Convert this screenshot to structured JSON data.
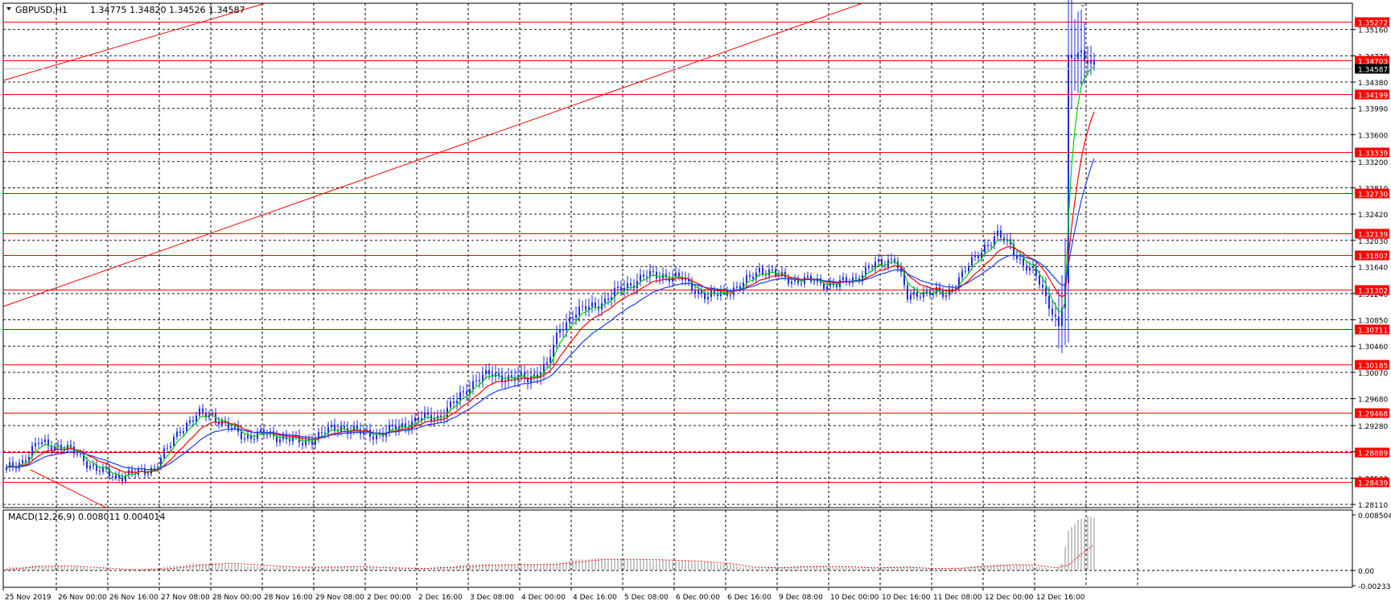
{
  "window": {
    "symbol": "GBPUSD,H1",
    "ohlc": "1.34775 1.34820 1.34526 1.34587"
  },
  "macd": {
    "label": "MACD(12,26,9) 0.008011 0.004014"
  },
  "colors": {
    "bull": "#1f2ee0",
    "level": "#ff0000",
    "ma_fast": "#00d000",
    "ma_mid": "#ff0000",
    "ma_slow": "#1a3cff",
    "grid": "#000000",
    "frame": "#000000",
    "tag_bg": "#ff0000",
    "tag_text": "#ffffff",
    "hist": "#b3b3b3",
    "signal": "#ff0000",
    "current_bg": "#000000"
  },
  "price_axis": {
    "ticks": [
      "1.35160",
      "1.34770",
      "1.34380",
      "1.33990",
      "1.33600",
      "1.33200",
      "1.32810",
      "1.32420",
      "1.32030",
      "1.31640",
      "1.31240",
      "1.30850",
      "1.30460",
      "1.30070",
      "1.29680",
      "1.29280",
      "1.28890",
      "1.28500",
      "1.28110"
    ],
    "ymin": 1.2811,
    "ymax": 1.3555
  },
  "levels": [
    {
      "label": "1.35272",
      "value": 1.35272
    },
    {
      "label": "1.34703",
      "value": 1.34703
    },
    {
      "label": "1.34199",
      "value": 1.34199
    },
    {
      "label": "1.33339",
      "value": 1.33339
    },
    {
      "label": "1.32730",
      "value": 1.3273
    },
    {
      "label": "1.32139",
      "value": 1.32139
    },
    {
      "label": "1.31807",
      "value": 1.31807
    },
    {
      "label": "1.31302",
      "value": 1.31302
    },
    {
      "label": "1.30711",
      "value": 1.30711
    },
    {
      "label": "1.30185",
      "value": 1.30185
    },
    {
      "label": "1.29468",
      "value": 1.29468
    },
    {
      "label": "1.28889",
      "value": 1.28889
    },
    {
      "label": "1.28439",
      "value": 1.28439
    }
  ],
  "current_price": {
    "label": "1.34587",
    "value": 1.34587
  },
  "macd_axis": {
    "ticks": [
      "0.008504",
      "0.00",
      "-0.00233"
    ],
    "ymax": 0.008504,
    "ymin": -0.00233
  },
  "time_axis": {
    "labels": [
      "25 Nov 2019",
      "26 Nov 00:00",
      "26 Nov 16:00",
      "27 Nov 08:00",
      "28 Nov 00:00",
      "28 Nov 16:00",
      "29 Nov 08:00",
      "2 Dec 00:00",
      "2 Dec 16:00",
      "3 Dec 08:00",
      "4 Dec 00:00",
      "4 Dec 16:00",
      "5 Dec 08:00",
      "6 Dec 00:00",
      "6 Dec 16:00",
      "9 Dec 08:00",
      "10 Dec 00:00",
      "10 Dec 16:00",
      "11 Dec 08:00",
      "12 Dec 00:00",
      "12 Dec 16:00"
    ]
  },
  "chart_data": {
    "type": "candlestick",
    "title": "GBPUSD,H1",
    "bars_per_label": 16,
    "price_anchors": [
      [
        0,
        1.2862
      ],
      [
        5,
        1.2876
      ],
      [
        10,
        1.2902
      ],
      [
        16,
        1.2898
      ],
      [
        22,
        1.2886
      ],
      [
        28,
        1.2862
      ],
      [
        34,
        1.2853
      ],
      [
        40,
        1.2856
      ],
      [
        46,
        1.2866
      ],
      [
        50,
        1.2892
      ],
      [
        54,
        1.2924
      ],
      [
        60,
        1.2944
      ],
      [
        64,
        1.2945
      ],
      [
        68,
        1.2928
      ],
      [
        74,
        1.2912
      ],
      [
        80,
        1.2915
      ],
      [
        86,
        1.2911
      ],
      [
        92,
        1.2902
      ],
      [
        98,
        1.2916
      ],
      [
        104,
        1.2927
      ],
      [
        110,
        1.2917
      ],
      [
        116,
        1.2915
      ],
      [
        122,
        1.2926
      ],
      [
        128,
        1.2938
      ],
      [
        134,
        1.2941
      ],
      [
        140,
        1.2965
      ],
      [
        146,
        1.2998
      ],
      [
        150,
        1.3003
      ],
      [
        156,
        1.3
      ],
      [
        162,
        1.2997
      ],
      [
        168,
        1.3018
      ],
      [
        172,
        1.3071
      ],
      [
        176,
        1.3094
      ],
      [
        180,
        1.3101
      ],
      [
        186,
        1.3114
      ],
      [
        192,
        1.3134
      ],
      [
        198,
        1.3149
      ],
      [
        204,
        1.3152
      ],
      [
        210,
        1.3145
      ],
      [
        214,
        1.3131
      ],
      [
        218,
        1.3117
      ],
      [
        222,
        1.3126
      ],
      [
        228,
        1.3133
      ],
      [
        234,
        1.3161
      ],
      [
        240,
        1.315
      ],
      [
        246,
        1.3143
      ],
      [
        252,
        1.3142
      ],
      [
        258,
        1.3136
      ],
      [
        264,
        1.3148
      ],
      [
        270,
        1.3166
      ],
      [
        276,
        1.3178
      ],
      [
        280,
        1.3117
      ],
      [
        284,
        1.3127
      ],
      [
        288,
        1.3125
      ],
      [
        292,
        1.3122
      ],
      [
        296,
        1.3147
      ],
      [
        300,
        1.317
      ],
      [
        304,
        1.3195
      ],
      [
        308,
        1.321
      ],
      [
        312,
        1.3195
      ],
      [
        316,
        1.3167
      ],
      [
        320,
        1.315
      ],
      [
        324,
        1.311
      ],
      [
        327,
        1.3074
      ],
      [
        329,
        1.3135
      ],
      [
        330,
        1.347
      ],
      [
        332,
        1.3478
      ],
      [
        334,
        1.3485
      ],
      [
        336,
        1.347
      ],
      [
        338,
        1.3459
      ]
    ],
    "wick_anchors": [
      [
        0,
        0.0016
      ],
      [
        50,
        0.0012
      ],
      [
        170,
        0.0025
      ],
      [
        210,
        0.0018
      ],
      [
        250,
        0.0012
      ],
      [
        275,
        0.0016
      ],
      [
        300,
        0.0014
      ],
      [
        320,
        0.002
      ],
      [
        326,
        0.0035
      ],
      [
        330,
        0.02
      ],
      [
        338,
        0.002
      ]
    ],
    "macd_histogram": [
      [
        0,
        0.0004
      ],
      [
        10,
        0.00075
      ],
      [
        20,
        0.0006
      ],
      [
        30,
        0.0002
      ],
      [
        40,
        0.0
      ],
      [
        50,
        0.0006
      ],
      [
        60,
        0.0011
      ],
      [
        70,
        0.0009
      ],
      [
        80,
        0.0005
      ],
      [
        90,
        0.0004
      ],
      [
        100,
        0.0006
      ],
      [
        110,
        0.0005
      ],
      [
        120,
        0.0003
      ],
      [
        130,
        0.0004
      ],
      [
        140,
        0.0007
      ],
      [
        150,
        0.001
      ],
      [
        160,
        0.0008
      ],
      [
        170,
        0.001
      ],
      [
        178,
        0.0017
      ],
      [
        186,
        0.0018
      ],
      [
        196,
        0.0016
      ],
      [
        206,
        0.0015
      ],
      [
        216,
        0.0013
      ],
      [
        226,
        0.0008
      ],
      [
        232,
        0.0003
      ],
      [
        240,
        0.0005
      ],
      [
        250,
        0.0007
      ],
      [
        260,
        0.0005
      ],
      [
        270,
        0.0004
      ],
      [
        280,
        0.0006
      ],
      [
        288,
        0.0002
      ],
      [
        296,
        0.0004
      ],
      [
        304,
        0.0008
      ],
      [
        314,
        0.0009
      ],
      [
        320,
        0.0006
      ],
      [
        326,
        0.0
      ],
      [
        328,
        0.001
      ],
      [
        330,
        0.006
      ],
      [
        333,
        0.0078
      ],
      [
        336,
        0.0082
      ],
      [
        338,
        0.008
      ]
    ],
    "macd_signal": [
      [
        0,
        0.0001
      ],
      [
        10,
        0.0006
      ],
      [
        20,
        0.0007
      ],
      [
        30,
        0.0004
      ],
      [
        40,
        0.0001
      ],
      [
        50,
        0.0002
      ],
      [
        60,
        0.0008
      ],
      [
        70,
        0.0011
      ],
      [
        80,
        0.0008
      ],
      [
        90,
        0.0005
      ],
      [
        100,
        0.0005
      ],
      [
        110,
        0.0006
      ],
      [
        120,
        0.0004
      ],
      [
        130,
        0.0003
      ],
      [
        140,
        0.0005
      ],
      [
        150,
        0.0008
      ],
      [
        160,
        0.0009
      ],
      [
        170,
        0.0009
      ],
      [
        178,
        0.0013
      ],
      [
        186,
        0.0017
      ],
      [
        196,
        0.0017
      ],
      [
        206,
        0.0016
      ],
      [
        216,
        0.0014
      ],
      [
        226,
        0.001
      ],
      [
        232,
        0.0005
      ],
      [
        240,
        0.0004
      ],
      [
        250,
        0.0006
      ],
      [
        260,
        0.0006
      ],
      [
        270,
        0.0004
      ],
      [
        280,
        0.0005
      ],
      [
        288,
        0.0003
      ],
      [
        296,
        0.0003
      ],
      [
        304,
        0.0006
      ],
      [
        314,
        0.0009
      ],
      [
        320,
        0.0008
      ],
      [
        326,
        0.0004
      ],
      [
        330,
        0.0008
      ],
      [
        333,
        0.0021
      ],
      [
        336,
        0.0032
      ],
      [
        338,
        0.004
      ]
    ]
  }
}
